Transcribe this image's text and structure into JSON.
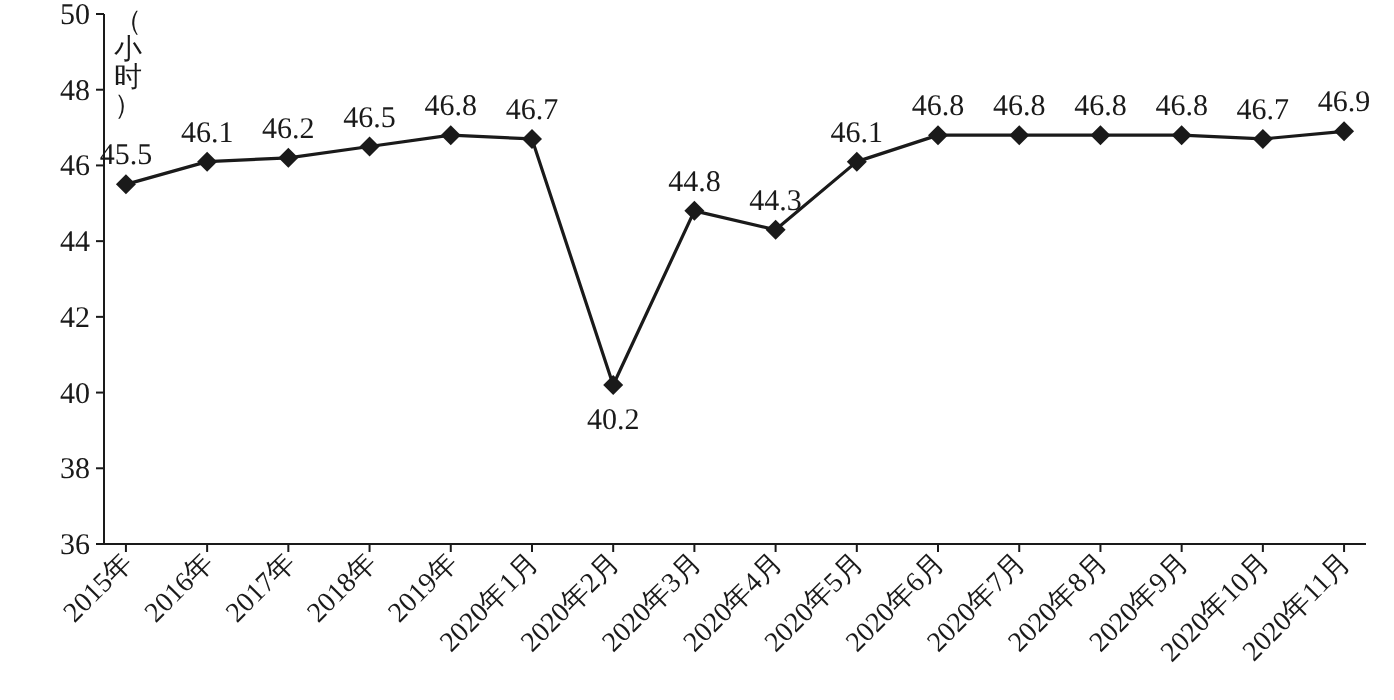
{
  "chart_data": {
    "type": "line",
    "ylabel": "（小时）",
    "categories": [
      "2015年",
      "2016年",
      "2017年",
      "2018年",
      "2019年",
      "2020年1月",
      "2020年2月",
      "2020年3月",
      "2020年4月",
      "2020年5月",
      "2020年6月",
      "2020年7月",
      "2020年8月",
      "2020年9月",
      "2020年10月",
      "2020年11月"
    ],
    "series": [
      {
        "color": "#1a1a1a",
        "values": [
          45.5,
          46.1,
          46.2,
          46.5,
          46.8,
          46.7,
          40.2,
          44.8,
          44.3,
          46.1,
          46.8,
          46.8,
          46.8,
          46.8,
          46.7,
          46.9
        ]
      }
    ],
    "ylim": [
      36,
      50
    ],
    "yticks": [
      36,
      38,
      40,
      42,
      44,
      46,
      48,
      50
    ],
    "marker": "diamond",
    "line_style": "solid",
    "data_labels": true
  }
}
